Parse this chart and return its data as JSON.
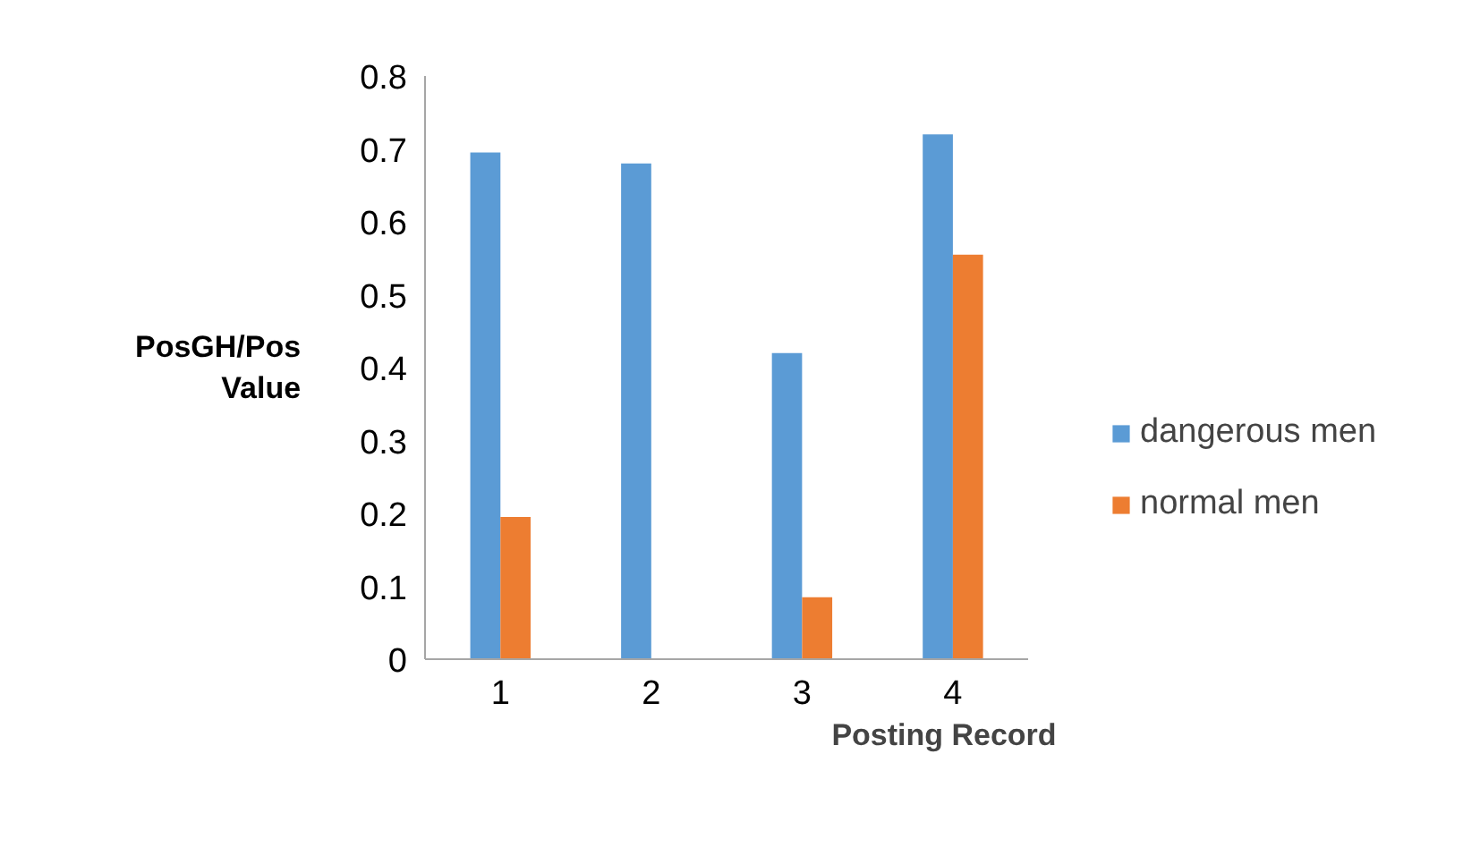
{
  "chart_data": {
    "type": "bar",
    "xlabel": "Posting Record",
    "ylabel": "PosGH/Pos Value",
    "categories": [
      "1",
      "2",
      "3",
      "4"
    ],
    "series": [
      {
        "name": "dangerous men",
        "color": "#5b9bd5",
        "values": [
          0.695,
          0.68,
          0.42,
          0.72
        ]
      },
      {
        "name": "normal men",
        "color": "#ed7d31",
        "values": [
          0.195,
          0,
          0.085,
          0.555
        ]
      }
    ],
    "ylim": [
      0,
      0.8
    ],
    "yticks": [
      0,
      0.1,
      0.2,
      0.3,
      0.4,
      0.5,
      0.6,
      0.7,
      0.8
    ],
    "grid": false,
    "legend": "right"
  }
}
